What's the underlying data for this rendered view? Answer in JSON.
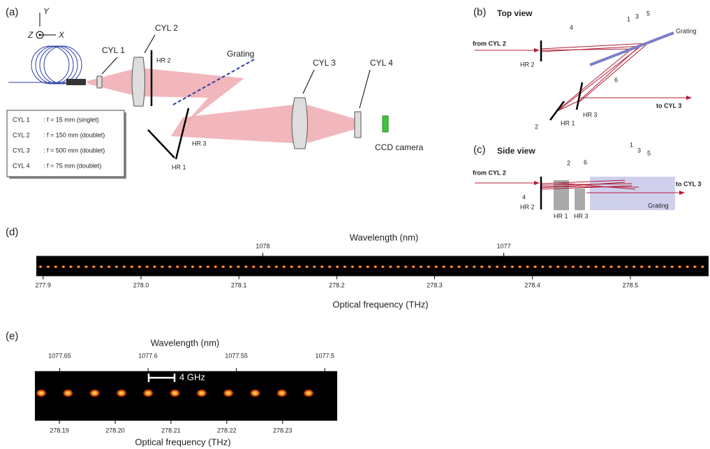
{
  "panel_a": {
    "label": "(a)",
    "axes": {
      "y": "Y",
      "z": "Z",
      "x": "X"
    },
    "components": {
      "cyl1": "CYL 1",
      "cyl2": "CYL 2",
      "hr2": "HR 2",
      "grating": "Grating",
      "cyl3": "CYL 3",
      "cyl4": "CYL 4",
      "hr3": "HR 3",
      "hr1": "HR 1",
      "ccd": "CCD camera"
    },
    "table": {
      "rows": [
        [
          "CYL 1",
          ": f = 15 mm (singlet)"
        ],
        [
          "CYL 2",
          ": f = 150 mm (doublet)"
        ],
        [
          "CYL 3",
          ": f = 500 mm (doublet)"
        ],
        [
          "CYL 4",
          ": f = 75 mm (doublet)"
        ]
      ]
    }
  },
  "panel_b": {
    "label": "(b)",
    "title": "Top view",
    "input": "from CYL 2",
    "output": "to CYL 3",
    "hr2": "HR 2",
    "hr1": "HR 1",
    "hr3": "HR 3",
    "grating": "Grating",
    "beams": [
      "1",
      "2",
      "3",
      "4",
      "5",
      "6"
    ]
  },
  "panel_c": {
    "label": "(c)",
    "title": "Side view",
    "input": "from CYL 2",
    "output": "to CYL 3",
    "hr2": "HR 2",
    "hr1": "HR 1",
    "hr3": "HR 3",
    "grating": "Grating",
    "beams": [
      "1",
      "2",
      "3",
      "4",
      "5",
      "6"
    ]
  },
  "panel_d": {
    "label": "(d)",
    "x_title": "Optical frequency (THz)",
    "x2_title": "Wavelength (nm)",
    "xlim": [
      277.893,
      278.58
    ],
    "xticks": [
      277.9,
      {
        "value": 278,
        "label": "278.0"
      },
      278.1,
      278.2,
      278.3,
      278.4,
      278.5
    ],
    "x2lim": [
      1078.94,
      1076.15
    ],
    "x2ticks": [
      1078,
      1077
    ]
  },
  "panel_e": {
    "label": "(e)",
    "x_title": "Optical frequency (THz)",
    "x2_title": "Wavelength (nm)",
    "scale_bar": "4 GHz",
    "xlim": [
      278.1856,
      278.2398
    ],
    "xticks": [
      278.19,
      {
        "value": 278.2,
        "label": "278.20"
      },
      278.21,
      278.22,
      278.23
    ],
    "x2lim": [
      1077.664,
      1077.493
    ],
    "x2ticks": [
      1077.65,
      1077.6,
      1077.55,
      1077.5
    ]
  }
}
